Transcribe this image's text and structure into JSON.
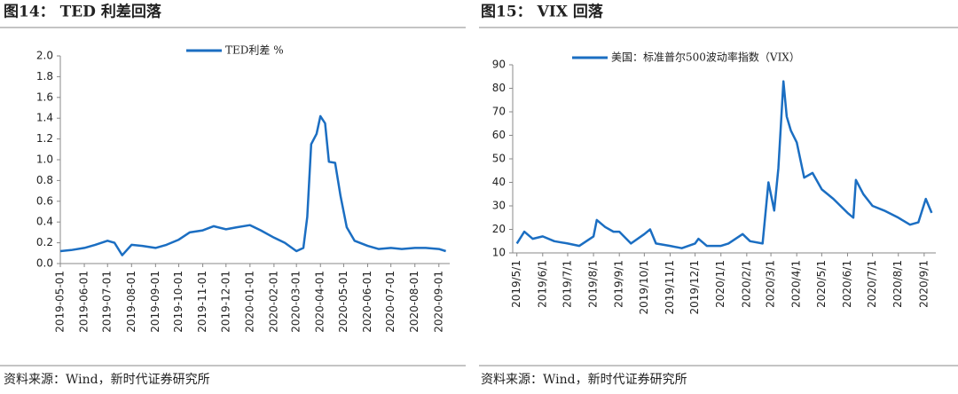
{
  "chart_data": [
    {
      "type": "line",
      "title": "图14： TED 利差回落",
      "source": "资料来源：Wind，新时代证券研究所",
      "legend": "top",
      "x": [
        "2019-05-01",
        "2019-05-15",
        "2019-06-01",
        "2019-06-15",
        "2019-07-01",
        "2019-07-10",
        "2019-07-20",
        "2019-08-01",
        "2019-08-15",
        "2019-09-01",
        "2019-09-15",
        "2019-10-01",
        "2019-10-15",
        "2019-11-01",
        "2019-11-15",
        "2019-12-01",
        "2019-12-15",
        "2020-01-01",
        "2020-01-15",
        "2020-02-01",
        "2020-02-15",
        "2020-03-01",
        "2020-03-10",
        "2020-03-15",
        "2020-03-20",
        "2020-03-27",
        "2020-04-01",
        "2020-04-07",
        "2020-04-12",
        "2020-04-20",
        "2020-04-27",
        "2020-05-05",
        "2020-05-15",
        "2020-06-01",
        "2020-06-15",
        "2020-07-01",
        "2020-07-15",
        "2020-08-01",
        "2020-08-15",
        "2020-09-01",
        "2020-09-10"
      ],
      "series": [
        {
          "name": "TED利差 %",
          "color": "#1b6ec2",
          "values": [
            0.12,
            0.13,
            0.15,
            0.18,
            0.22,
            0.2,
            0.08,
            0.18,
            0.17,
            0.15,
            0.18,
            0.23,
            0.3,
            0.32,
            0.36,
            0.33,
            0.35,
            0.37,
            0.32,
            0.25,
            0.2,
            0.12,
            0.15,
            0.45,
            1.15,
            1.25,
            1.42,
            1.35,
            0.98,
            0.97,
            0.65,
            0.35,
            0.22,
            0.17,
            0.14,
            0.15,
            0.14,
            0.15,
            0.15,
            0.14,
            0.12
          ]
        }
      ],
      "xlim": [
        "2019-05-01",
        "2020-09-15"
      ],
      "xticks": [
        "2019-05-01",
        "2019-06-01",
        "2019-07-01",
        "2019-08-01",
        "2019-09-01",
        "2019-10-01",
        "2019-11-01",
        "2019-12-01",
        "2020-01-01",
        "2020-02-01",
        "2020-03-01",
        "2020-04-01",
        "2020-05-01",
        "2020-06-01",
        "2020-07-01",
        "2020-08-01",
        "2020-09-01"
      ],
      "ylim": [
        0,
        2
      ],
      "yticks": [
        {
          "value": 0,
          "label": "0.0"
        },
        {
          "value": 0.2,
          "label": "0.2"
        },
        {
          "value": 0.4,
          "label": "0.4"
        },
        {
          "value": 0.6,
          "label": "0.6"
        },
        {
          "value": 0.8,
          "label": "0.8"
        },
        {
          "value": 1,
          "label": "1.0"
        },
        {
          "value": 1.2,
          "label": "1.2"
        },
        {
          "value": 1.4,
          "label": "1.4"
        },
        {
          "value": 1.6,
          "label": "1.6"
        },
        {
          "value": 1.8,
          "label": "1.8"
        },
        {
          "value": 2,
          "label": "2.0"
        }
      ]
    },
    {
      "type": "line",
      "title": "图15： VIX 回落",
      "source": "资料来源：Wind，新时代证券研究所",
      "legend": "top",
      "x": [
        "2019/5/1",
        "2019/5/10",
        "2019/5/20",
        "2019/6/1",
        "2019/6/15",
        "2019/7/1",
        "2019/7/15",
        "2019/8/1",
        "2019/8/5",
        "2019/8/15",
        "2019/8/25",
        "2019/9/1",
        "2019/9/15",
        "2019/10/1",
        "2019/10/8",
        "2019/10/15",
        "2019/11/1",
        "2019/11/15",
        "2019/12/1",
        "2019/12/5",
        "2019/12/15",
        "2020/1/1",
        "2020/1/10",
        "2020/1/27",
        "2020/2/5",
        "2020/2/20",
        "2020/2/27",
        "2020/3/5",
        "2020/3/10",
        "2020/3/16",
        "2020/3/20",
        "2020/3/25",
        "2020/4/1",
        "2020/4/10",
        "2020/4/20",
        "2020/5/1",
        "2020/5/15",
        "2020/6/1",
        "2020/6/8",
        "2020/6/11",
        "2020/6/20",
        "2020/7/1",
        "2020/7/15",
        "2020/8/1",
        "2020/8/15",
        "2020/8/25",
        "2020/9/3",
        "2020/9/10"
      ],
      "series": [
        {
          "name": "美国：标准普尔500波动率指数（VIX）",
          "color": "#1b6ec2",
          "values": [
            14,
            19,
            16,
            17,
            15,
            14,
            13,
            17,
            24,
            21,
            19,
            19,
            14,
            18,
            20,
            14,
            13,
            12,
            14,
            16,
            13,
            13,
            14,
            18,
            15,
            14,
            40,
            28,
            46,
            83,
            68,
            62,
            57,
            42,
            44,
            37,
            33,
            27,
            25,
            41,
            35,
            30,
            28,
            25,
            22,
            23,
            33,
            27
          ]
        }
      ],
      "xlim": [
        "2019/4/26",
        "2020/9/15"
      ],
      "xticks": [
        "2019/5/1",
        "2019/6/1",
        "2019/7/1",
        "2019/8/1",
        "2019/9/1",
        "2019/10/1",
        "2019/11/1",
        "2019/12/1",
        "2020/1/1",
        "2020/2/1",
        "2020/3/1",
        "2020/4/1",
        "2020/5/1",
        "2020/6/1",
        "2020/7/1",
        "2020/8/1",
        "2020/9/1"
      ],
      "ylim": [
        10,
        90
      ],
      "yticks": [
        10,
        20,
        30,
        40,
        50,
        60,
        70,
        80,
        90
      ]
    }
  ]
}
